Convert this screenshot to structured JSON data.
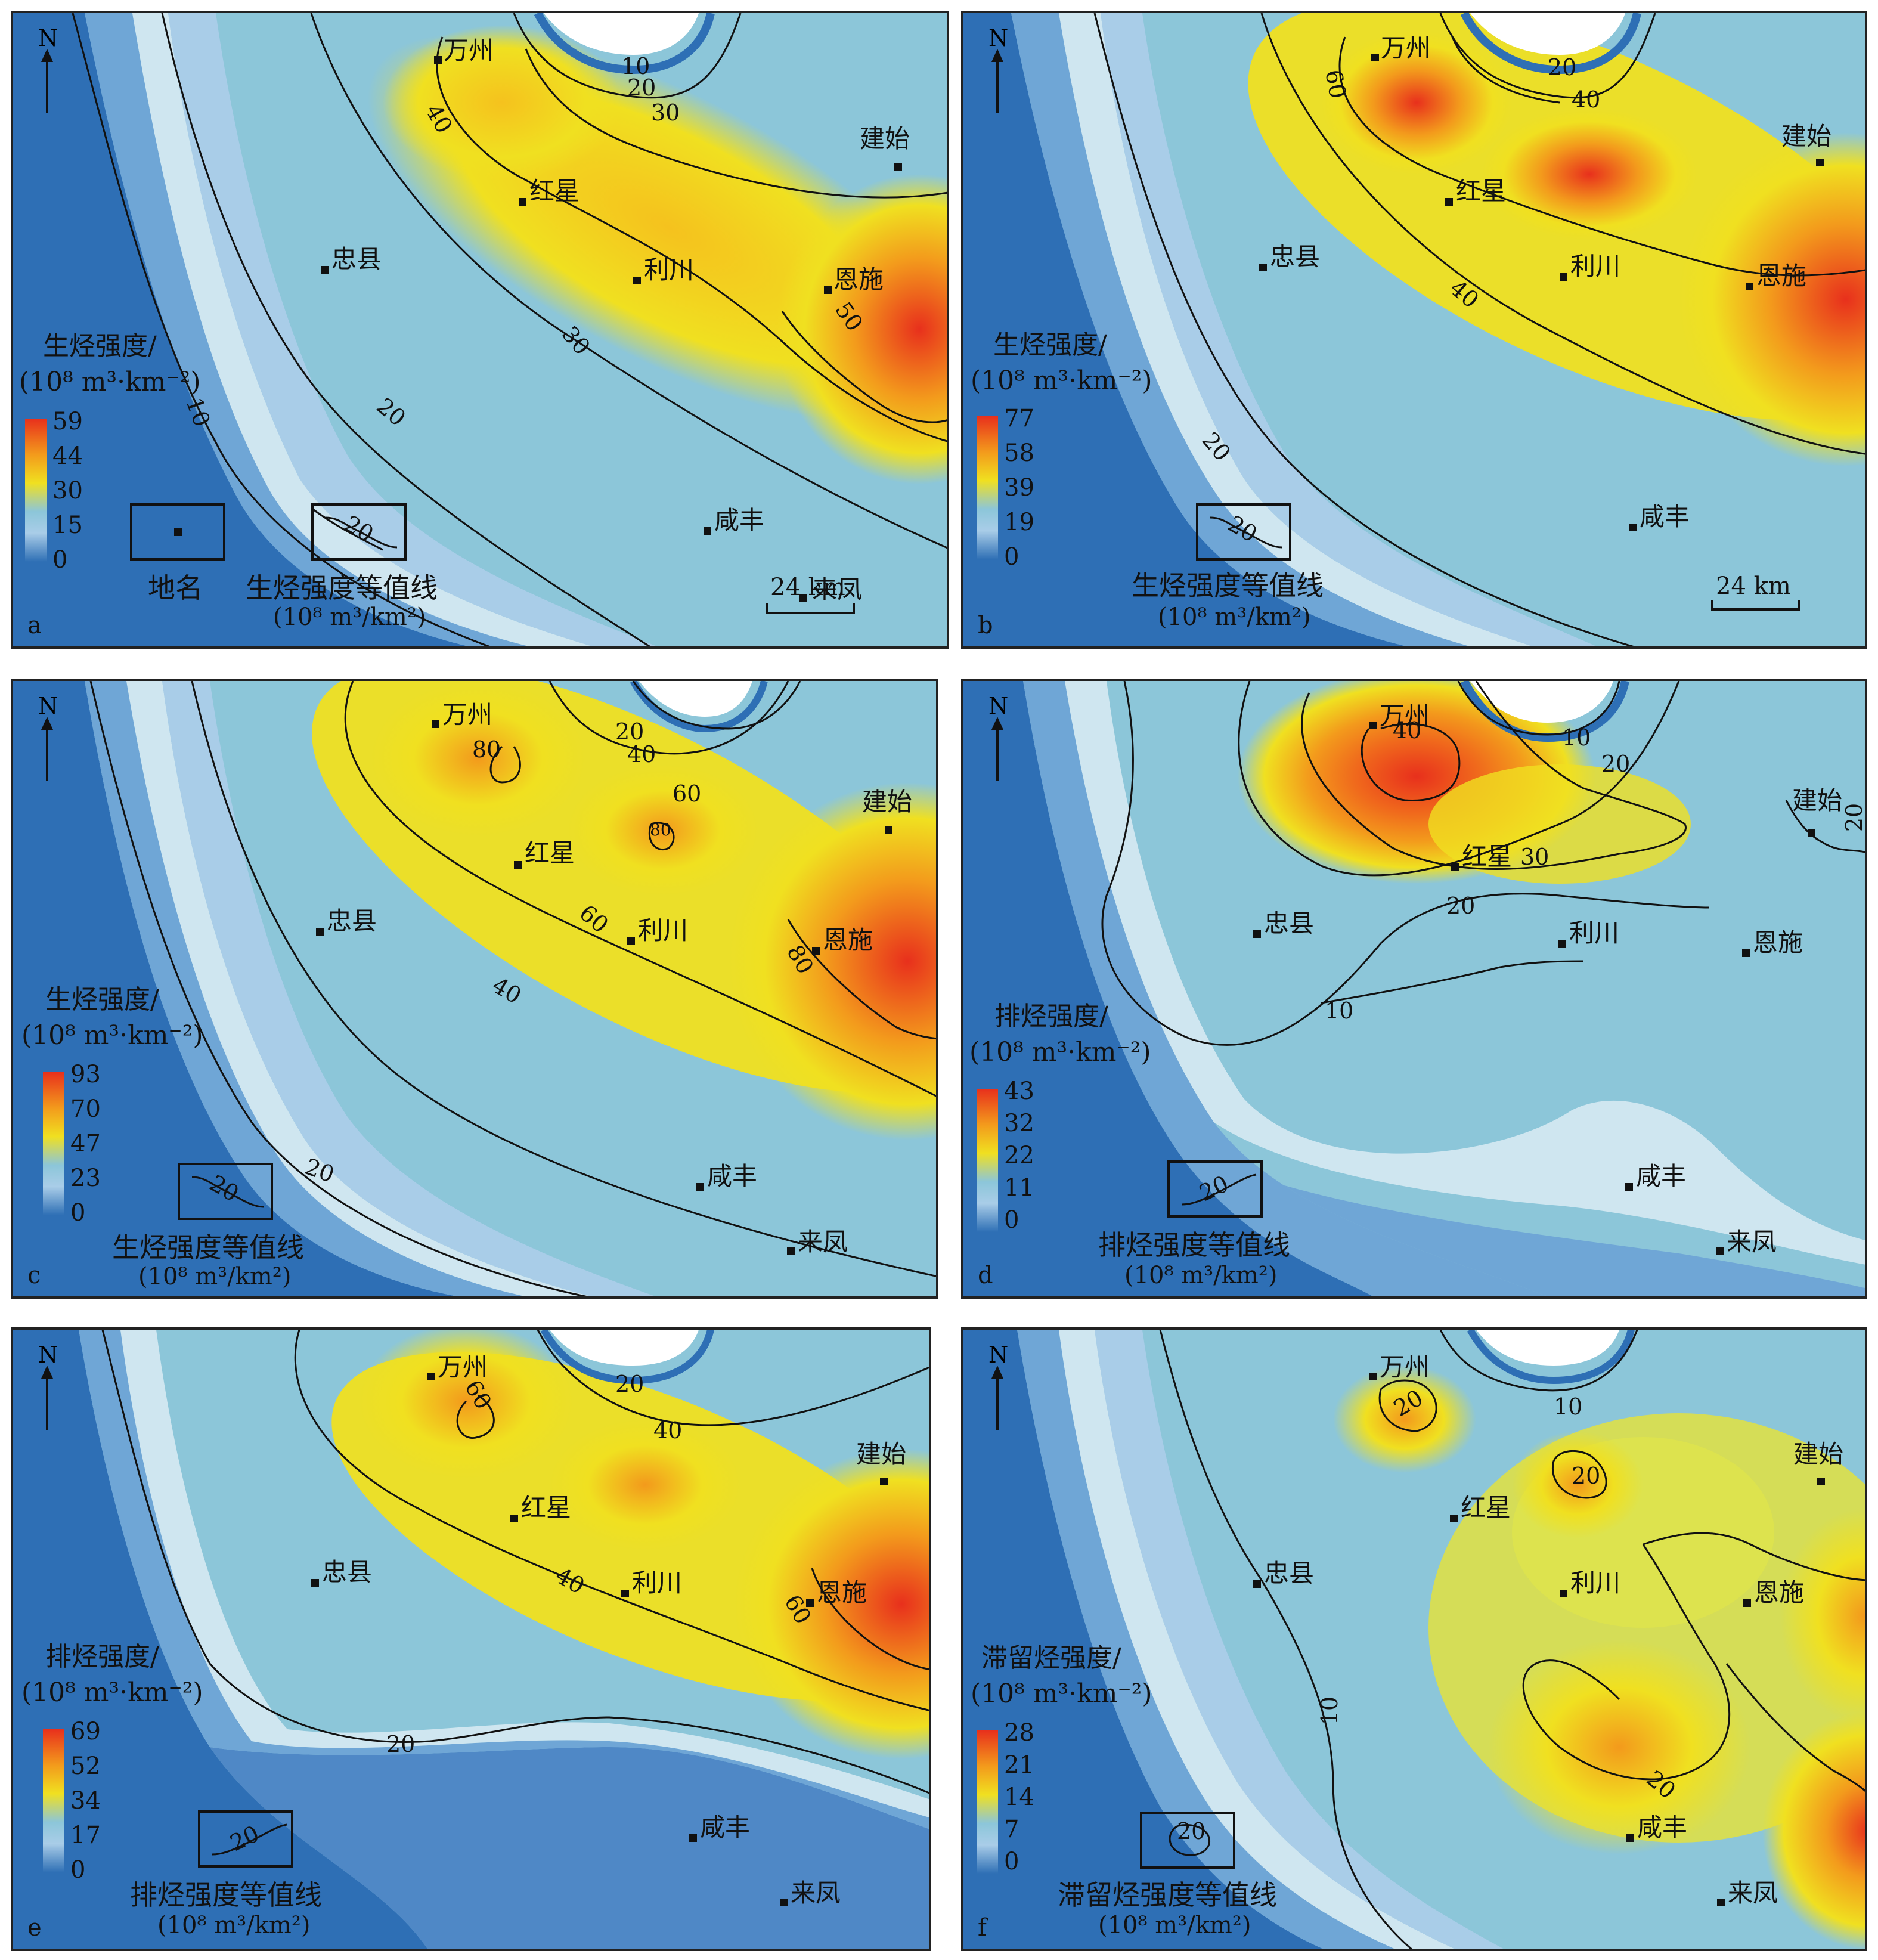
{
  "colors": {
    "deep_blue": "#2e6fb5",
    "mid_blue": "#6fa6d6",
    "light_blue": "#a9cde8",
    "pale": "#cfe6f0",
    "teal": "#8cc6d9",
    "yellow": "#f0e020",
    "orange": "#f39a1c",
    "red": "#e8301c"
  },
  "cities": {
    "wanzhou": "万州",
    "jianshi": "建始",
    "hongxing": "红星",
    "zhongxian": "忠县",
    "lichuan": "利川",
    "enshi": "恩施",
    "xianfeng": "咸丰",
    "laifeng": "来凤"
  },
  "north": "N",
  "panels": [
    {
      "letter": "a",
      "legend_title_1": "生烃强度/",
      "legend_title_2": "(10⁸ m³·km⁻²)",
      "legend_ticks": [
        "59",
        "44",
        "30",
        "15",
        "0"
      ],
      "contour_labels": [
        "10",
        "20",
        "30",
        "40",
        "10",
        "20",
        "30",
        "50"
      ],
      "key": {
        "place_name": "地名",
        "contour_title": "生烃强度等值线",
        "contour_unit": "(10⁸ m³/km²)",
        "box_label": "20"
      },
      "scale": "24 km"
    },
    {
      "letter": "b",
      "legend_title_1": "生烃强度/",
      "legend_title_2": "(10⁸ m³·km⁻²)",
      "legend_ticks": [
        "77",
        "58",
        "39",
        "19",
        "0"
      ],
      "contour_labels": [
        "60",
        "20",
        "40",
        "40",
        "20"
      ],
      "key": {
        "contour_title": "生烃强度等值线",
        "contour_unit": "(10⁸ m³/km²)",
        "box_label": "20"
      },
      "scale": "24 km"
    },
    {
      "letter": "c",
      "legend_title_1": "生烃强度/",
      "legend_title_2": "(10⁸ m³·km⁻²)",
      "legend_ticks": [
        "93",
        "70",
        "47",
        "23",
        "0"
      ],
      "contour_labels": [
        "20",
        "40",
        "80",
        "60",
        "80",
        "60",
        "80",
        "40",
        "20"
      ],
      "key": {
        "contour_title": "生烃强度等值线",
        "contour_unit": "(10⁸ m³/km²)",
        "box_label": "20"
      }
    },
    {
      "letter": "d",
      "legend_title_1": "排烃强度/",
      "legend_title_2": "(10⁸ m³·km⁻²)",
      "legend_ticks": [
        "43",
        "32",
        "22",
        "11",
        "0"
      ],
      "contour_labels": [
        "10",
        "20",
        "40",
        "30",
        "20",
        "10",
        "20"
      ],
      "key": {
        "contour_title": "排烃强度等值线",
        "contour_unit": "(10⁸ m³/km²)",
        "box_label": "20"
      }
    },
    {
      "letter": "e",
      "legend_title_1": "排烃强度/",
      "legend_title_2": "(10⁸ m³·km⁻²)",
      "legend_ticks": [
        "69",
        "52",
        "34",
        "17",
        "0"
      ],
      "contour_labels": [
        "20",
        "40",
        "60",
        "40",
        "60",
        "20"
      ],
      "key": {
        "contour_title": "排烃强度等值线",
        "contour_unit": "(10⁸ m³/km²)",
        "box_label": "20"
      }
    },
    {
      "letter": "f",
      "legend_title_1": "滞留烃强度/",
      "legend_title_2": "(10⁸ m³·km⁻²)",
      "legend_ticks": [
        "28",
        "21",
        "14",
        "7",
        "0"
      ],
      "contour_labels": [
        "10",
        "20",
        "20",
        "10",
        "20"
      ],
      "key": {
        "contour_title": "滞留烃强度等值线",
        "contour_unit": "(10⁸ m³/km²)",
        "box_label": "20"
      }
    }
  ]
}
